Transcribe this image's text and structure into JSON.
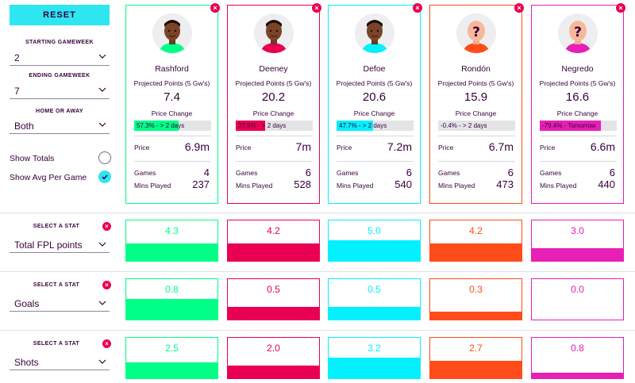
{
  "sidebar": {
    "reset_label": "RESET",
    "starting_label": "STARTING GAMEWEEK",
    "starting_value": "2",
    "ending_label": "ENDING GAMEWEEK",
    "ending_value": "7",
    "homeaway_label": "HOME OR AWAY",
    "homeaway_value": "Both",
    "show_totals_label": "Show Totals",
    "show_avg_label": "Show Avg Per Game",
    "show_totals_checked": false,
    "show_avg_checked": true
  },
  "labels": {
    "projected": "Projected Points (5 Gw's)",
    "price_change": "Price Change",
    "price": "Price",
    "games": "Games",
    "mins": "Mins Played",
    "select_stat": "SELECT A STAT",
    "close": "×"
  },
  "players": [
    {
      "name": "Rashford",
      "projected": "7.4",
      "price_change_text": "57.3% - > 2 days",
      "price_change_pct": 57.3,
      "price": "6.9m",
      "games": "4",
      "mins": "237",
      "color": "#00ff87",
      "avatar": "photo"
    },
    {
      "name": "Deeney",
      "projected": "20.2",
      "price_change_text": "37.9% - > 2 days",
      "price_change_pct": 37.9,
      "price": "7m",
      "games": "6",
      "mins": "528",
      "color": "#e90052",
      "avatar": "photo"
    },
    {
      "name": "Defoe",
      "projected": "20.6",
      "price_change_text": "47.7% - > 2 days",
      "price_change_pct": 47.7,
      "price": "7.2m",
      "games": "6",
      "mins": "540",
      "color": "#05f0ff",
      "avatar": "photo"
    },
    {
      "name": "Rondón",
      "projected": "15.9",
      "price_change_text": "-0.4% - > 2 days",
      "price_change_pct": -0.4,
      "price": "6.7m",
      "games": "6",
      "mins": "473",
      "color": "#ff4c1a",
      "avatar": "unknown"
    },
    {
      "name": "Negredo",
      "projected": "16.6",
      "price_change_text": "-79.4% - Tomorrow",
      "price_change_pct": -79.4,
      "price": "6.6m",
      "games": "6",
      "mins": "440",
      "color": "#e61fb6",
      "avatar": "unknown"
    }
  ],
  "stats": [
    {
      "name": "Total FPL points",
      "values": [
        "4.3",
        "4.2",
        "5.0",
        "4.2",
        "3.0"
      ],
      "fill_fraction": [
        0.86,
        0.84,
        1.0,
        0.84,
        0.6
      ]
    },
    {
      "name": "Goals",
      "values": [
        "0.8",
        "0.5",
        "0.5",
        "0.3",
        "0.0"
      ],
      "fill_fraction": [
        1.0,
        0.62,
        0.62,
        0.37,
        0.0
      ]
    },
    {
      "name": "Shots",
      "values": [
        "2.5",
        "2.0",
        "3.2",
        "2.7",
        "0.8"
      ],
      "fill_fraction": [
        0.78,
        0.62,
        1.0,
        0.84,
        0.25
      ]
    }
  ],
  "colors": {
    "green": "#00ff87",
    "pink": "#e90052",
    "cyan": "#05f0ff",
    "orange": "#ff4c1a",
    "magenta": "#e61fb6",
    "text": "#37003c"
  }
}
